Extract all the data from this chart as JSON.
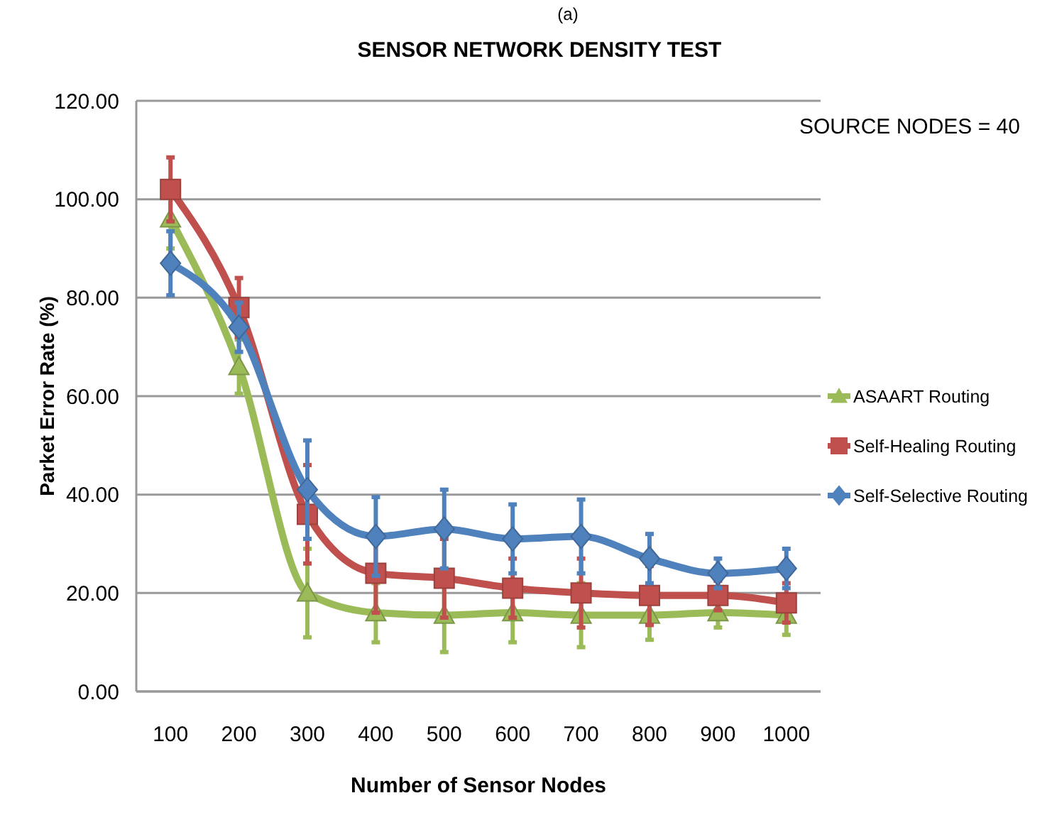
{
  "chart_data": {
    "type": "line",
    "title": "SENSOR NETWORK DENSITY TEST",
    "xlabel": "Number  of Sensor Nodes",
    "ylabel": "Parket Error Rate (%)",
    "categories": [
      "100",
      "200",
      "300",
      "400",
      "500",
      "600",
      "700",
      "800",
      "900",
      "1000"
    ],
    "ylim": [
      0,
      120
    ],
    "yticks": [
      {
        "value": 0,
        "label": "0.00"
      },
      {
        "value": 20,
        "label": "20.00"
      },
      {
        "value": 40,
        "label": "40.00"
      },
      {
        "value": 60,
        "label": "60.00"
      },
      {
        "value": 80,
        "label": "80.00"
      },
      {
        "value": 100,
        "label": "100.00"
      },
      {
        "value": 120,
        "label": "120.00"
      }
    ],
    "grid": "y",
    "legend": "right",
    "annotations": [
      "(a)",
      "SOURCE NODES = 40"
    ],
    "series": [
      {
        "name": "ASAART Routing",
        "color": "#9bbb59",
        "marker": "triangle",
        "values": [
          96,
          66,
          20,
          16,
          15.5,
          16,
          15.5,
          15.5,
          16,
          15.5
        ],
        "errors": [
          6,
          5.5,
          9,
          6,
          7.5,
          6,
          6.5,
          5,
          3,
          4
        ]
      },
      {
        "name": "Self-Healing Routing",
        "color": "#c0504d",
        "marker": "square",
        "values": [
          102,
          78,
          36,
          24,
          23,
          21,
          20,
          19.5,
          19.5,
          18
        ],
        "errors": [
          6.5,
          6,
          10,
          8,
          8,
          6,
          7,
          6,
          3,
          4
        ]
      },
      {
        "name": "Self-Selective Routing",
        "color": "#4f81bd",
        "marker": "diamond",
        "values": [
          87,
          74,
          41,
          31.5,
          33,
          31,
          31.5,
          27,
          24,
          25
        ],
        "errors": [
          6.5,
          5,
          10,
          8,
          8,
          7,
          7.5,
          5,
          3,
          4
        ]
      }
    ]
  }
}
